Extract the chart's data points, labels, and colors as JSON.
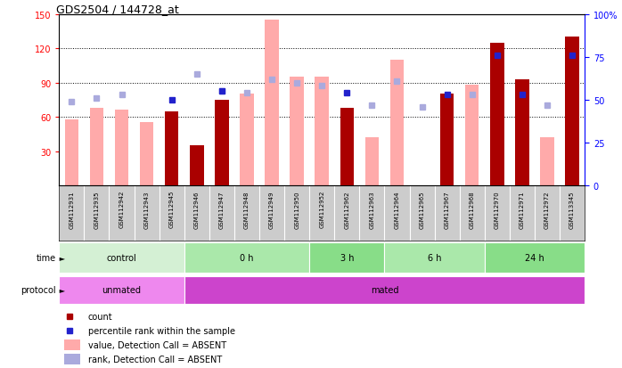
{
  "title": "GDS2504 / 144728_at",
  "samples": [
    "GSM112931",
    "GSM112935",
    "GSM112942",
    "GSM112943",
    "GSM112945",
    "GSM112946",
    "GSM112947",
    "GSM112948",
    "GSM112949",
    "GSM112950",
    "GSM112952",
    "GSM112962",
    "GSM112963",
    "GSM112964",
    "GSM112965",
    "GSM112967",
    "GSM112968",
    "GSM112970",
    "GSM112971",
    "GSM112972",
    "GSM113345"
  ],
  "value_absent": [
    58,
    68,
    66,
    55,
    null,
    35,
    75,
    80,
    145,
    95,
    95,
    null,
    42,
    110,
    null,
    null,
    88,
    null,
    null,
    42,
    null
  ],
  "count_present": [
    null,
    null,
    null,
    null,
    65,
    35,
    75,
    null,
    null,
    null,
    null,
    68,
    null,
    null,
    null,
    80,
    null,
    125,
    93,
    null,
    130
  ],
  "rank_absent": [
    49,
    51,
    53,
    null,
    null,
    65,
    55,
    54,
    62,
    60,
    58,
    null,
    47,
    61,
    46,
    null,
    53,
    null,
    null,
    47,
    null
  ],
  "percentile_present": [
    null,
    null,
    null,
    null,
    50,
    null,
    55,
    null,
    null,
    null,
    null,
    54,
    null,
    null,
    null,
    53,
    null,
    76,
    53,
    null,
    76
  ],
  "time_groups": [
    {
      "label": "control",
      "start": 0,
      "end": 5
    },
    {
      "label": "0 h",
      "start": 5,
      "end": 10
    },
    {
      "label": "3 h",
      "start": 10,
      "end": 13
    },
    {
      "label": "6 h",
      "start": 13,
      "end": 17
    },
    {
      "label": "24 h",
      "start": 17,
      "end": 21
    }
  ],
  "time_colors": [
    "#d4f0d4",
    "#aae8aa",
    "#88dd88",
    "#aae8aa",
    "#88dd88"
  ],
  "protocol_groups": [
    {
      "label": "unmated",
      "start": 0,
      "end": 5
    },
    {
      "label": "mated",
      "start": 5,
      "end": 21
    }
  ],
  "protocol_colors": [
    "#ee88ee",
    "#cc44cc"
  ],
  "ylim_left": [
    0,
    150
  ],
  "ylim_right": [
    0,
    100
  ],
  "yticks_left": [
    30,
    60,
    90,
    120,
    150
  ],
  "yticks_right": [
    0,
    25,
    50,
    75,
    100
  ],
  "color_count": "#aa0000",
  "color_percentile": "#2222cc",
  "color_value_absent": "#ffaaaa",
  "color_rank_absent": "#aaaadd"
}
